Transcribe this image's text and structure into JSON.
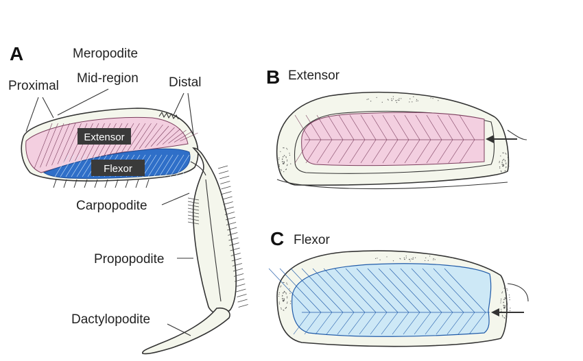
{
  "panels": {
    "a": {
      "letter": "A"
    },
    "b": {
      "letter": "B",
      "title": "Extensor"
    },
    "c": {
      "letter": "C",
      "title": "Flexor"
    }
  },
  "labels": {
    "meropodite": "Meropodite",
    "mid_region": "Mid-region",
    "proximal": "Proximal",
    "distal": "Distal",
    "carpopodite": "Carpopodite",
    "propopodite": "Propopodite",
    "dactylopodite": "Dactylopodite",
    "extensor_box": "Extensor",
    "flexor_box": "Flexor"
  },
  "colors": {
    "extensor_muscle": "#f3cfe0",
    "extensor_fibers": "#7a3c5c",
    "flexor_muscle": "#2f6fc8",
    "flexor_muscle_light": "#cde8f6",
    "flexor_fibers": "#1f5aa8",
    "label_box": "#3a3a3a",
    "outline": "#333333"
  }
}
